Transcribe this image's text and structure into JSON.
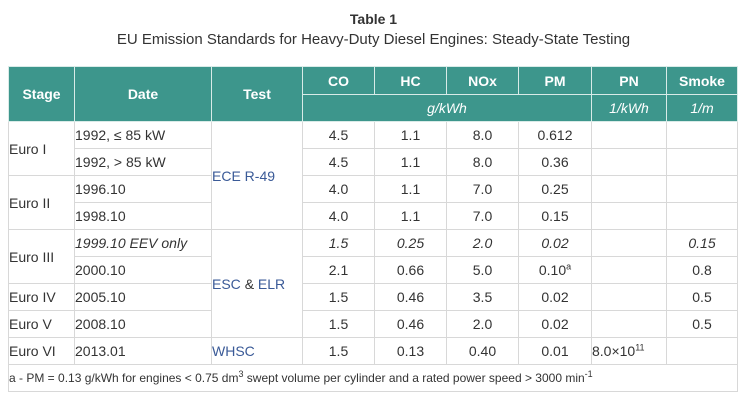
{
  "caption": {
    "label": "Table 1",
    "title": "EU Emission Standards for Heavy-Duty Diesel Engines: Steady-State Testing"
  },
  "header": {
    "stage": "Stage",
    "date": "Date",
    "test": "Test",
    "co": "CO",
    "hc": "HC",
    "nox": "NOx",
    "pm": "PM",
    "pn": "PN",
    "smoke": "Smoke",
    "unit_mass": "g/kWh",
    "unit_pn": "1/kWh",
    "unit_smoke": "1/m"
  },
  "stages": {
    "euro1": "Euro I",
    "euro2": "Euro II",
    "euro3": "Euro III",
    "euro4": "Euro IV",
    "euro5": "Euro V",
    "euro6": "Euro VI"
  },
  "tests": {
    "ece": "ECE R-49",
    "esc": "ESC",
    "amp": "&",
    "elr": "ELR",
    "whsc": "WHSC"
  },
  "rows": [
    {
      "date": "1992, ≤ 85 kW",
      "co": "4.5",
      "hc": "1.1",
      "nox": "8.0",
      "pm": "0.612",
      "pn": "",
      "smoke": ""
    },
    {
      "date": "1992, > 85 kW",
      "co": "4.5",
      "hc": "1.1",
      "nox": "8.0",
      "pm": "0.36",
      "pn": "",
      "smoke": ""
    },
    {
      "date": "1996.10",
      "co": "4.0",
      "hc": "1.1",
      "nox": "7.0",
      "pm": "0.25",
      "pn": "",
      "smoke": ""
    },
    {
      "date": "1998.10",
      "co": "4.0",
      "hc": "1.1",
      "nox": "7.0",
      "pm": "0.15",
      "pn": "",
      "smoke": ""
    },
    {
      "date": "1999.10 EEV only",
      "co": "1.5",
      "hc": "0.25",
      "nox": "2.0",
      "pm": "0.02",
      "pn": "",
      "smoke": "0.15"
    },
    {
      "date": "2000.10",
      "co": "2.1",
      "hc": "0.66",
      "nox": "5.0",
      "pm": "0.10",
      "pm_note": "a",
      "pn": "",
      "smoke": "0.8"
    },
    {
      "date": "2005.10",
      "co": "1.5",
      "hc": "0.46",
      "nox": "3.5",
      "pm": "0.02",
      "pn": "",
      "smoke": "0.5"
    },
    {
      "date": "2008.10",
      "co": "1.5",
      "hc": "0.46",
      "nox": "2.0",
      "pm": "0.02",
      "pn": "",
      "smoke": "0.5"
    },
    {
      "date": "2013.01",
      "co": "1.5",
      "hc": "0.13",
      "nox": "0.40",
      "pm": "0.01",
      "pn_base": "8.0×10",
      "pn_exp": "11",
      "smoke": ""
    }
  ],
  "footnote": {
    "part1": "a - PM = 0.13 g/kWh for engines < 0.75 dm",
    "sup1": "3",
    "part2": " swept volume per cylinder and a rated power speed > 3000 min",
    "sup2": "-1"
  }
}
